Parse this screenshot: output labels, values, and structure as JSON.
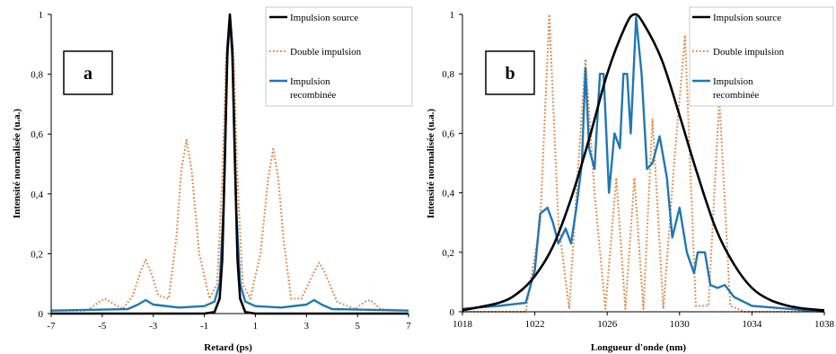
{
  "figure": {
    "panels": [
      {
        "id": "a",
        "label": "a",
        "xlabel": "Retard (ps)",
        "ylabel": "Intensité normalisée (u.a.)",
        "x_ticks": [
          "-7",
          "-5",
          "-3",
          "-1",
          "1",
          "3",
          "5",
          "7"
        ],
        "y_ticks": [
          "0",
          "0,2",
          "0,4",
          "0,6",
          "0,8",
          "1"
        ],
        "legend": [
          "Impulsion source",
          "Double impulsion",
          "Impulsion recombinée"
        ]
      },
      {
        "id": "b",
        "label": "b",
        "xlabel": "Longueur d'onde (nm)",
        "ylabel": "Intensité normalisée (u.a.)",
        "x_ticks": [
          "1018",
          "1022",
          "1026",
          "1030",
          "1034",
          "1038"
        ],
        "y_ticks": [
          "0",
          "0,2",
          "0,4",
          "0,6",
          "0,8",
          "1"
        ],
        "legend": [
          "Impulsion source",
          "Double impulsion",
          "Impulsion recombinée"
        ]
      }
    ]
  },
  "colors": {
    "source": "#000000",
    "double": "#e07b30",
    "recombined": "#1f77b4"
  },
  "chart_data": [
    {
      "type": "line",
      "xlabel": "Retard (ps)",
      "ylabel": "Intensité normalisée (u.a.)",
      "xlim": [
        -7,
        7
      ],
      "ylim": [
        0,
        1
      ],
      "grid": false,
      "legend_position": "top-right",
      "series": [
        {
          "name": "Impulsion source",
          "style": "solid",
          "x": [
            -7,
            -1.0,
            -0.6,
            -0.4,
            -0.3,
            -0.2,
            -0.1,
            0,
            0.1,
            0.2,
            0.3,
            0.4,
            0.6,
            1.0,
            7
          ],
          "y": [
            0.0,
            0.0,
            0.005,
            0.05,
            0.18,
            0.5,
            0.88,
            1.0,
            0.88,
            0.5,
            0.18,
            0.05,
            0.005,
            0.0,
            0.0
          ]
        },
        {
          "name": "Double impulsion",
          "style": "dotted",
          "x": [
            -7,
            -5.6,
            -5.1,
            -4.9,
            -4.7,
            -4.2,
            -3.8,
            -3.5,
            -3.3,
            -3.1,
            -2.8,
            -2.4,
            -2.1,
            -1.9,
            -1.7,
            -1.5,
            -1.2,
            -0.8,
            -0.5,
            -0.3,
            -0.15,
            0,
            0.15,
            0.3,
            0.5,
            0.8,
            1.2,
            1.5,
            1.7,
            1.9,
            2.1,
            2.4,
            2.8,
            3.3,
            3.5,
            3.7,
            4.2,
            4.9,
            5.3,
            5.5,
            5.9,
            7
          ],
          "y": [
            0.01,
            0.01,
            0.04,
            0.05,
            0.04,
            0.015,
            0.06,
            0.14,
            0.18,
            0.14,
            0.06,
            0.05,
            0.25,
            0.48,
            0.58,
            0.48,
            0.2,
            0.05,
            0.1,
            0.45,
            0.85,
            1.0,
            0.85,
            0.45,
            0.1,
            0.05,
            0.2,
            0.45,
            0.55,
            0.45,
            0.25,
            0.05,
            0.05,
            0.14,
            0.17,
            0.14,
            0.04,
            0.015,
            0.04,
            0.045,
            0.015,
            0.01
          ]
        },
        {
          "name": "Impulsion recombinée",
          "style": "solid",
          "x": [
            -7,
            -4,
            -3.6,
            -3.3,
            -3.0,
            -2.0,
            -1.0,
            -0.6,
            -0.4,
            -0.25,
            -0.1,
            0,
            0.1,
            0.25,
            0.4,
            0.6,
            1.0,
            2.0,
            3.0,
            3.3,
            3.6,
            4.0,
            7
          ],
          "y": [
            0.01,
            0.015,
            0.03,
            0.045,
            0.03,
            0.02,
            0.025,
            0.04,
            0.1,
            0.35,
            0.85,
            0.99,
            0.85,
            0.35,
            0.1,
            0.04,
            0.025,
            0.02,
            0.03,
            0.045,
            0.03,
            0.015,
            0.01
          ]
        }
      ]
    },
    {
      "type": "line",
      "xlabel": "Longueur d'onde (nm)",
      "ylabel": "Intensité normalisée (u.a.)",
      "xlim": [
        1018,
        1038
      ],
      "ylim": [
        0,
        1
      ],
      "grid": false,
      "legend_position": "top-right",
      "series": [
        {
          "name": "Impulsion source",
          "style": "solid",
          "x": [
            1018,
            1020,
            1021,
            1022,
            1023,
            1024,
            1025,
            1026,
            1027,
            1027.5,
            1028,
            1029,
            1030,
            1031,
            1032,
            1033,
            1034,
            1035,
            1036,
            1037,
            1038
          ],
          "y": [
            0.005,
            0.03,
            0.06,
            0.12,
            0.22,
            0.38,
            0.58,
            0.8,
            0.96,
            1.0,
            0.97,
            0.85,
            0.66,
            0.46,
            0.28,
            0.16,
            0.08,
            0.04,
            0.02,
            0.01,
            0.005
          ],
          "smooth": true
        },
        {
          "name": "Double impulsion",
          "style": "dotted",
          "x": [
            1018,
            1021.5,
            1022.3,
            1022.8,
            1023.3,
            1023.9,
            1024.3,
            1024.8,
            1025.3,
            1025.9,
            1026.5,
            1027.0,
            1027.5,
            1028.0,
            1028.5,
            1029.1,
            1029.7,
            1030.3,
            1030.9,
            1031.6,
            1032.2,
            1032.8,
            1033.6,
            1038
          ],
          "y": [
            0.0,
            0.0,
            0.3,
            1.0,
            0.3,
            0.01,
            0.4,
            0.85,
            0.4,
            0.01,
            0.45,
            0.01,
            0.45,
            0.01,
            0.65,
            0.01,
            0.5,
            0.93,
            0.02,
            0.02,
            0.72,
            0.02,
            0.0,
            0.0
          ]
        },
        {
          "name": "Impulsion recombinée",
          "style": "solid",
          "x": [
            1018,
            1020,
            1021.5,
            1022.0,
            1022.3,
            1022.7,
            1023.0,
            1023.3,
            1023.7,
            1024.0,
            1024.3,
            1024.6,
            1024.8,
            1025.0,
            1025.3,
            1025.6,
            1025.8,
            1026.1,
            1026.4,
            1026.7,
            1026.9,
            1027.1,
            1027.3,
            1027.6,
            1027.9,
            1028.2,
            1028.5,
            1028.9,
            1029.3,
            1029.6,
            1030.0,
            1030.4,
            1030.8,
            1031.0,
            1031.4,
            1031.7,
            1032.1,
            1032.5,
            1033.0,
            1034,
            1038
          ],
          "y": [
            0.01,
            0.02,
            0.03,
            0.14,
            0.33,
            0.35,
            0.3,
            0.23,
            0.28,
            0.23,
            0.35,
            0.5,
            0.82,
            0.55,
            0.48,
            0.8,
            0.8,
            0.4,
            0.6,
            0.55,
            0.8,
            0.8,
            0.6,
            0.99,
            0.8,
            0.48,
            0.5,
            0.59,
            0.45,
            0.25,
            0.35,
            0.2,
            0.13,
            0.2,
            0.2,
            0.09,
            0.08,
            0.09,
            0.05,
            0.02,
            0.0
          ]
        }
      ]
    }
  ]
}
